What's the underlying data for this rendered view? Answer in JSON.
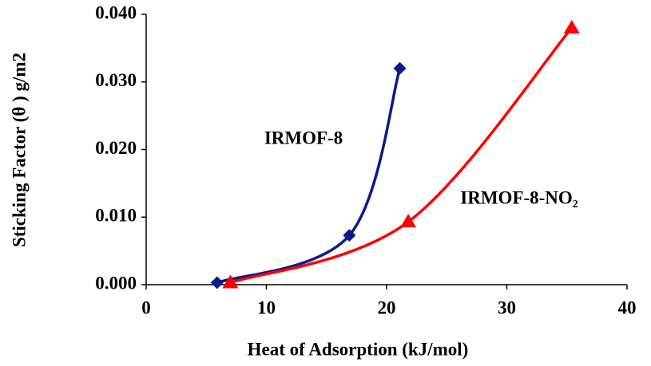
{
  "chart_data": {
    "type": "scatter",
    "x_label": "Heat of Adsorption (kJ/mol)",
    "y_label": "Sticking Factor (θ ) g/m2",
    "xlim": [
      0,
      40
    ],
    "xticks": [
      0,
      10,
      20,
      30,
      40
    ],
    "ylim": [
      0,
      0.04
    ],
    "yticks": [
      {
        "value": 0,
        "label": "0.000"
      },
      {
        "value": 0.01,
        "label": "0.010"
      },
      {
        "value": 0.02,
        "label": "0.020"
      },
      {
        "value": 0.03,
        "label": "0.030"
      },
      {
        "value": 0.04,
        "label": "0.040"
      }
    ],
    "grid": false,
    "smooth": true,
    "series": [
      {
        "name": "IRMOF-8",
        "color": "#0a1a8c",
        "marker": "diamond",
        "x": [
          5.9,
          16.9,
          21.1
        ],
        "values": [
          0.0003,
          0.0073,
          0.032
        ]
      },
      {
        "name": "IRMOF-8-NO₂",
        "color": "#ff0000",
        "marker": "triangle",
        "x": [
          7.0,
          21.8,
          35.4
        ],
        "values": [
          0.0003,
          0.0093,
          0.038
        ]
      }
    ]
  }
}
